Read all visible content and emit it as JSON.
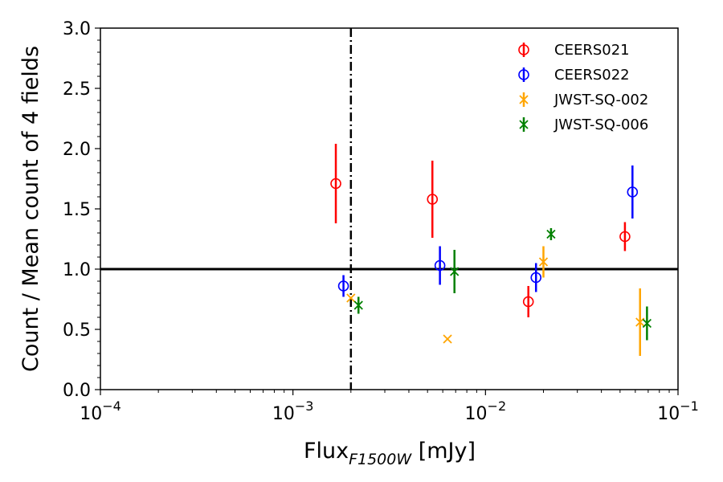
{
  "chart_data": {
    "type": "scatter",
    "title": "",
    "xlabel_main": "Flux",
    "xlabel_sub": "F1500W",
    "xlabel_unit": " [mJy]",
    "ylabel": "Count / Mean count of 4 fields",
    "xscale": "log",
    "xlim": [
      0.0001,
      0.1
    ],
    "ylim": [
      0.0,
      3.0
    ],
    "x_ticks": [
      {
        "value": 0.0001,
        "base": "10",
        "exp": "−4"
      },
      {
        "value": 0.001,
        "base": "10",
        "exp": "−3"
      },
      {
        "value": 0.01,
        "base": "10",
        "exp": "−2"
      },
      {
        "value": 0.1,
        "base": "10",
        "exp": "−1"
      }
    ],
    "y_ticks": [
      {
        "value": 0.0,
        "label": "0.0"
      },
      {
        "value": 0.5,
        "label": "0.5"
      },
      {
        "value": 1.0,
        "label": "1.0"
      },
      {
        "value": 1.5,
        "label": "1.5"
      },
      {
        "value": 2.0,
        "label": "2.0"
      },
      {
        "value": 2.5,
        "label": "2.5"
      },
      {
        "value": 3.0,
        "label": "3.0"
      }
    ],
    "reference_lines": {
      "horizontal_y": 1.0,
      "vertical_x": 0.002
    },
    "legend_position": "top-right",
    "series": [
      {
        "name": "CEERS021",
        "color": "#ff0000",
        "marker": "circle",
        "points": [
          {
            "x": 0.00167,
            "y": 1.71,
            "err": 0.33
          },
          {
            "x": 0.0053,
            "y": 1.58,
            "err": 0.32
          },
          {
            "x": 0.0167,
            "y": 0.73,
            "err": 0.13
          },
          {
            "x": 0.053,
            "y": 1.27,
            "err": 0.12
          }
        ]
      },
      {
        "name": "CEERS022",
        "color": "#0000ff",
        "marker": "circle",
        "points": [
          {
            "x": 0.00183,
            "y": 0.86,
            "err": 0.09
          },
          {
            "x": 0.0058,
            "y": 1.03,
            "err": 0.16
          },
          {
            "x": 0.0183,
            "y": 0.93,
            "err": 0.12
          },
          {
            "x": 0.058,
            "y": 1.64,
            "err": 0.22
          }
        ]
      },
      {
        "name": "JWST-SQ-002",
        "color": "#ffa500",
        "marker": "x",
        "points": [
          {
            "x": 0.002,
            "y": 0.76,
            "err": 0.0
          },
          {
            "x": 0.00635,
            "y": 0.42,
            "err": 0.0
          },
          {
            "x": 0.02,
            "y": 1.06,
            "err": 0.13
          },
          {
            "x": 0.0635,
            "y": 0.56,
            "err": 0.28
          }
        ]
      },
      {
        "name": "JWST-SQ-006",
        "color": "#008000",
        "marker": "x",
        "points": [
          {
            "x": 0.00219,
            "y": 0.7,
            "err": 0.07
          },
          {
            "x": 0.0069,
            "y": 0.98,
            "err": 0.18
          },
          {
            "x": 0.0219,
            "y": 1.29,
            "err": 0.05
          },
          {
            "x": 0.069,
            "y": 0.55,
            "err": 0.14
          }
        ]
      }
    ]
  }
}
